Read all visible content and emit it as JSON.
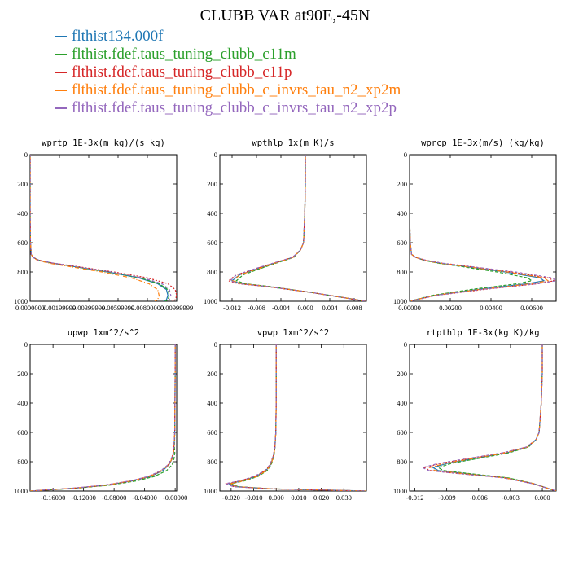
{
  "title": "CLUBB VAR at90E,-45N",
  "legend": [
    {
      "label": "flthist134.000f",
      "color": "#1f77b4"
    },
    {
      "label": "flthist.fdef.taus_tuning_clubb_c11m",
      "color": "#2ca02c"
    },
    {
      "label": "flthist.fdef.taus_tuning_clubb_c11p",
      "color": "#d62728"
    },
    {
      "label": "flthist.fdef.taus_tuning_clubb_c_invrs_tau_n2_xp2m",
      "color": "#ff7f0e"
    },
    {
      "label": "flthist.fdef.taus_tuning_clubb_c_invrs_tau_n2_xp2p",
      "color": "#9467bd"
    }
  ],
  "chart_data": [
    {
      "type": "line",
      "title": "wprtp  1E-3x(m kg)/(s kg)",
      "xlim": [
        0,
        0.01
      ],
      "ylim": [
        0,
        1000
      ],
      "y_inverted": true,
      "xticks": [
        "0.0000000",
        "0.00199999",
        "0.00399999",
        "0.00599999",
        "0.00800000",
        "0.00999999"
      ],
      "yticks": [
        "0",
        "200",
        "400",
        "600",
        "800",
        "1000"
      ],
      "y": [
        0,
        200,
        400,
        600,
        680,
        700,
        720,
        740,
        760,
        800,
        840,
        880,
        920,
        960,
        990,
        1000
      ],
      "series": [
        {
          "color": "#1f77b4",
          "values": [
            0,
            0,
            0,
            2e-05,
            8e-05,
            0.0002,
            0.0006,
            0.0015,
            0.0028,
            0.0053,
            0.0074,
            0.0087,
            0.0093,
            0.0094,
            0.0093,
            0.0091
          ]
        },
        {
          "color": "#2ca02c",
          "values": [
            0,
            0,
            0,
            2e-05,
            8e-05,
            0.0002,
            0.0006,
            0.0015,
            0.0028,
            0.0053,
            0.0075,
            0.0088,
            0.0094,
            0.0095,
            0.0094,
            0.0092
          ]
        },
        {
          "color": "#d62728",
          "values": [
            0,
            0,
            0,
            2e-05,
            8e-05,
            0.0002,
            0.0006,
            0.0016,
            0.003,
            0.0057,
            0.008,
            0.0094,
            0.0099,
            0.01,
            0.0099,
            0.0097
          ]
        },
        {
          "color": "#ff7f0e",
          "values": [
            0,
            0,
            0,
            2e-05,
            8e-05,
            0.0002,
            0.0005,
            0.0013,
            0.0025,
            0.0049,
            0.0069,
            0.0081,
            0.0087,
            0.0088,
            0.0087,
            0.0085
          ]
        },
        {
          "color": "#9467bd",
          "values": [
            0,
            0,
            0,
            2e-05,
            8e-05,
            0.0002,
            0.0006,
            0.0016,
            0.0029,
            0.0055,
            0.0077,
            0.009,
            0.0095,
            0.0096,
            0.0095,
            0.0093
          ]
        }
      ]
    },
    {
      "type": "line",
      "title": "wpthlp  1x(m K)/s",
      "xlim": [
        -0.014,
        0.01
      ],
      "ylim": [
        0,
        1000
      ],
      "y_inverted": true,
      "xticks": [
        "-0.012",
        "-0.008",
        "-0.004",
        "0.000",
        "0.004",
        "0.008"
      ],
      "yticks": [
        "0",
        "200",
        "400",
        "600",
        "800",
        "1000"
      ],
      "y": [
        0,
        200,
        400,
        600,
        650,
        700,
        740,
        780,
        820,
        860,
        880,
        900,
        940,
        980,
        1000
      ],
      "series": [
        {
          "color": "#1f77b4",
          "values": [
            0,
            0,
            -0.0001,
            -0.0003,
            -0.0008,
            -0.002,
            -0.005,
            -0.008,
            -0.0108,
            -0.012,
            -0.0105,
            -0.006,
            0.001,
            0.007,
            0.0098
          ]
        },
        {
          "color": "#2ca02c",
          "values": [
            0,
            0,
            -0.0001,
            -0.0003,
            -0.0008,
            -0.0019,
            -0.0048,
            -0.0076,
            -0.0102,
            -0.0113,
            -0.0099,
            -0.0057,
            0.001,
            0.007,
            0.0098
          ]
        },
        {
          "color": "#d62728",
          "values": [
            0,
            0,
            -0.0001,
            -0.0003,
            -0.0008,
            -0.0021,
            -0.0052,
            -0.0083,
            -0.0113,
            -0.0126,
            -0.011,
            -0.0062,
            0.001,
            0.007,
            0.0098
          ]
        },
        {
          "color": "#ff7f0e",
          "values": [
            0,
            0,
            -0.0001,
            -0.0003,
            -0.0008,
            -0.002,
            -0.005,
            -0.0079,
            -0.0107,
            -0.0119,
            -0.0104,
            -0.0059,
            0.001,
            0.007,
            0.0098
          ]
        },
        {
          "color": "#9467bd",
          "values": [
            0,
            0,
            -0.0001,
            -0.0003,
            -0.0008,
            -0.0021,
            -0.0053,
            -0.0084,
            -0.0113,
            -0.0123,
            -0.0107,
            -0.006,
            0.001,
            0.007,
            0.0098
          ]
        }
      ]
    },
    {
      "type": "line",
      "title": "wprcp  1E-3x(m/s) (kg/kg)",
      "xlim": [
        0,
        0.0072
      ],
      "ylim": [
        0,
        1000
      ],
      "y_inverted": true,
      "xticks": [
        "0.00000",
        "0.00200",
        "0.00400",
        "0.00600"
      ],
      "yticks": [
        "0",
        "200",
        "400",
        "600",
        "800",
        "1000"
      ],
      "y": [
        0,
        200,
        400,
        600,
        680,
        700,
        720,
        740,
        760,
        800,
        840,
        860,
        880,
        920,
        960,
        1000
      ],
      "series": [
        {
          "color": "#1f77b4",
          "values": [
            0,
            0,
            0,
            3e-05,
            0.0001,
            0.0003,
            0.0007,
            0.0015,
            0.0026,
            0.0047,
            0.0064,
            0.0066,
            0.0058,
            0.0033,
            0.0012,
            0
          ]
        },
        {
          "color": "#2ca02c",
          "values": [
            0,
            0,
            0,
            3e-05,
            0.0001,
            0.0003,
            0.0007,
            0.0014,
            0.0024,
            0.0043,
            0.0058,
            0.006,
            0.0053,
            0.003,
            0.0011,
            0
          ]
        },
        {
          "color": "#d62728",
          "values": [
            0,
            0,
            0,
            3e-05,
            0.0001,
            0.0003,
            0.0008,
            0.0016,
            0.0028,
            0.005,
            0.0068,
            0.0071,
            0.0063,
            0.0036,
            0.0013,
            0
          ]
        },
        {
          "color": "#ff7f0e",
          "values": [
            0,
            0,
            0,
            3e-05,
            0.0001,
            0.0003,
            0.0007,
            0.0015,
            0.0026,
            0.0048,
            0.0066,
            0.0068,
            0.006,
            0.0034,
            0.0012,
            0
          ]
        },
        {
          "color": "#9467bd",
          "values": [
            0,
            0,
            0,
            3e-05,
            0.0001,
            0.0003,
            0.0008,
            0.0016,
            0.0028,
            0.0052,
            0.007,
            0.0072,
            0.0063,
            0.0035,
            0.0013,
            0
          ]
        }
      ]
    },
    {
      "type": "line",
      "title": "upwp  1xm^2/s^2",
      "xlim": [
        -0.19,
        0.002
      ],
      "ylim": [
        0,
        1000
      ],
      "y_inverted": true,
      "xticks": [
        "-0.16000",
        "-0.12000",
        "-0.08000",
        "-0.04000",
        "-0.00000"
      ],
      "yticks": [
        "0",
        "200",
        "400",
        "600",
        "800",
        "1000"
      ],
      "y": [
        0,
        200,
        400,
        600,
        700,
        740,
        780,
        820,
        860,
        900,
        930,
        960,
        980,
        1000
      ],
      "series": [
        {
          "color": "#1f77b4",
          "values": [
            0,
            0,
            -0.0002,
            -0.0006,
            -0.0015,
            -0.002,
            -0.004,
            -0.008,
            -0.016,
            -0.032,
            -0.055,
            -0.09,
            -0.13,
            -0.19
          ]
        },
        {
          "color": "#2ca02c",
          "values": [
            0,
            0,
            -0.0002,
            -0.0005,
            -0.001,
            -0.0005,
            -0.0015,
            -0.004,
            -0.011,
            -0.027,
            -0.05,
            -0.086,
            -0.127,
            -0.19
          ]
        },
        {
          "color": "#d62728",
          "values": [
            0,
            0,
            -0.0002,
            -0.0006,
            -0.0016,
            -0.0025,
            -0.0048,
            -0.009,
            -0.018,
            -0.034,
            -0.057,
            -0.092,
            -0.132,
            -0.19
          ]
        },
        {
          "color": "#ff7f0e",
          "values": [
            0,
            0,
            -0.0002,
            -0.0006,
            -0.0015,
            -0.0022,
            -0.0042,
            -0.0083,
            -0.017,
            -0.033,
            -0.056,
            -0.091,
            -0.131,
            -0.19
          ]
        },
        {
          "color": "#9467bd",
          "values": [
            0,
            0,
            -0.0002,
            -0.0006,
            -0.0016,
            -0.0026,
            -0.005,
            -0.0092,
            -0.0185,
            -0.035,
            -0.058,
            -0.093,
            -0.133,
            -0.19
          ]
        }
      ]
    },
    {
      "type": "line",
      "title": "vpwp  1xm^2/s^2",
      "xlim": [
        -0.025,
        0.04
      ],
      "ylim": [
        0,
        1000
      ],
      "y_inverted": true,
      "xticks": [
        "-0.020",
        "-0.010",
        "0.000",
        "0.010",
        "0.020",
        "0.030"
      ],
      "yticks": [
        "0",
        "200",
        "400",
        "600",
        "800",
        "1000"
      ],
      "y": [
        0,
        200,
        400,
        600,
        700,
        760,
        820,
        860,
        900,
        930,
        950,
        970,
        985,
        1000
      ],
      "series": [
        {
          "color": "#1f77b4",
          "values": [
            0,
            0,
            0,
            -0.0002,
            -0.0006,
            -0.0012,
            -0.0025,
            -0.0045,
            -0.009,
            -0.015,
            -0.021,
            -0.018,
            -0.002,
            0.04
          ]
        },
        {
          "color": "#2ca02c",
          "values": [
            0,
            0,
            0,
            -0.0002,
            -0.0005,
            -0.001,
            -0.0022,
            -0.004,
            -0.008,
            -0.014,
            -0.02,
            -0.017,
            -0.002,
            0.04
          ]
        },
        {
          "color": "#d62728",
          "values": [
            0,
            0,
            0,
            -0.0002,
            -0.0006,
            -0.0013,
            -0.0027,
            -0.0048,
            -0.0095,
            -0.0158,
            -0.022,
            -0.0188,
            -0.0025,
            0.04
          ]
        },
        {
          "color": "#ff7f0e",
          "values": [
            0,
            0,
            0,
            -0.0002,
            -0.0006,
            -0.0011,
            -0.0024,
            -0.0043,
            -0.0085,
            -0.0145,
            -0.0205,
            -0.0175,
            -0.002,
            0.04
          ]
        },
        {
          "color": "#9467bd",
          "values": [
            0,
            0,
            0,
            -0.0002,
            -0.0006,
            -0.0013,
            -0.0028,
            -0.005,
            -0.0098,
            -0.016,
            -0.0225,
            -0.019,
            -0.0025,
            0.04
          ]
        }
      ]
    },
    {
      "type": "line",
      "title": "rtpthlp  1E-3x(kg K)/kg",
      "xlim": [
        -0.0125,
        0.0013
      ],
      "ylim": [
        0,
        1000
      ],
      "y_inverted": true,
      "xticks": [
        "-0.012",
        "-0.009",
        "-0.006",
        "-0.003",
        "0.000"
      ],
      "yticks": [
        "0",
        "200",
        "400",
        "600",
        "800",
        "1000"
      ],
      "y": [
        0,
        200,
        400,
        600,
        650,
        700,
        740,
        780,
        810,
        840,
        860,
        880,
        910,
        950,
        1000
      ],
      "series": [
        {
          "color": "#1f77b4",
          "values": [
            0,
            0,
            -0.0001,
            -0.0003,
            -0.0006,
            -0.0014,
            -0.0034,
            -0.0065,
            -0.0089,
            -0.0103,
            -0.0098,
            -0.0074,
            -0.0034,
            -0.0008,
            0.0013
          ]
        },
        {
          "color": "#2ca02c",
          "values": [
            0,
            0,
            -0.0001,
            -0.0003,
            -0.0006,
            -0.0013,
            -0.0032,
            -0.0062,
            -0.0085,
            -0.0098,
            -0.0093,
            -0.007,
            -0.0032,
            -0.0008,
            0.0013
          ]
        },
        {
          "color": "#d62728",
          "values": [
            0,
            0,
            -0.0001,
            -0.0003,
            -0.0006,
            -0.0015,
            -0.0037,
            -0.007,
            -0.0095,
            -0.0111,
            -0.0106,
            -0.008,
            -0.0036,
            -0.0009,
            0.0013
          ]
        },
        {
          "color": "#ff7f0e",
          "values": [
            0,
            0,
            -0.0001,
            -0.0003,
            -0.0006,
            -0.0014,
            -0.0035,
            -0.0067,
            -0.0091,
            -0.0106,
            -0.0101,
            -0.0076,
            -0.0035,
            -0.0008,
            0.0013
          ]
        },
        {
          "color": "#9467bd",
          "values": [
            0,
            0,
            -0.0001,
            -0.0003,
            -0.0006,
            -0.0015,
            -0.0038,
            -0.0072,
            -0.0097,
            -0.0113,
            -0.0107,
            -0.0081,
            -0.0037,
            -0.0009,
            0.0013
          ]
        }
      ]
    }
  ]
}
